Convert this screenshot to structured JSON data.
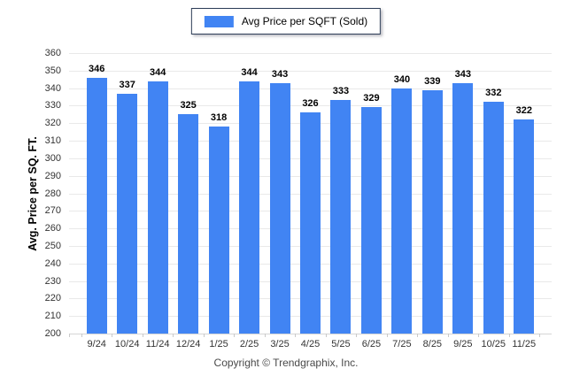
{
  "chart_data": {
    "type": "bar",
    "title": "",
    "legend": [
      "Avg Price per SQFT (Sold)"
    ],
    "categories": [
      "9/24",
      "10/24",
      "11/24",
      "12/24",
      "1/25",
      "2/25",
      "3/25",
      "4/25",
      "5/25",
      "6/25",
      "7/25",
      "8/25",
      "9/25",
      "10/25",
      "11/25"
    ],
    "values": [
      346,
      337,
      344,
      325,
      318,
      344,
      343,
      326,
      333,
      329,
      340,
      339,
      343,
      332,
      322
    ],
    "xlabel": "",
    "ylabel": "Avg. Price per SQ. FT.",
    "ylim": [
      200,
      360
    ],
    "ytick_step": 10,
    "grid": true,
    "legend_position": "top-center",
    "value_labels": true
  },
  "footer": {
    "text": "Copyright © Trendgraphix, Inc."
  },
  "colors": {
    "bar": "#4184f3",
    "gridline": "#e9e9e9",
    "baseline": "#d6d6d6",
    "legend_border": "#2d3d57",
    "tick_label": "#333333",
    "footer_text": "#4a4a4a"
  }
}
